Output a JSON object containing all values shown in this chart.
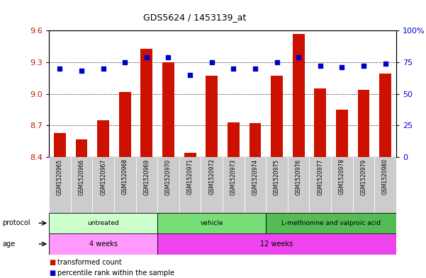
{
  "title": "GDS5624 / 1453139_at",
  "samples": [
    "GSM1520965",
    "GSM1520966",
    "GSM1520967",
    "GSM1520968",
    "GSM1520969",
    "GSM1520970",
    "GSM1520971",
    "GSM1520972",
    "GSM1520973",
    "GSM1520974",
    "GSM1520975",
    "GSM1520976",
    "GSM1520977",
    "GSM1520978",
    "GSM1520979",
    "GSM1520980"
  ],
  "bar_values": [
    8.63,
    8.57,
    8.75,
    9.02,
    9.43,
    9.3,
    8.44,
    9.17,
    8.73,
    8.72,
    9.17,
    9.57,
    9.05,
    8.85,
    9.04,
    9.19
  ],
  "dot_values": [
    70,
    68,
    70,
    75,
    79,
    79,
    65,
    75,
    70,
    70,
    75,
    79,
    72,
    71,
    72,
    74
  ],
  "bar_color": "#cc1100",
  "dot_color": "#0000cc",
  "ylim_left": [
    8.4,
    9.6
  ],
  "ylim_right": [
    0,
    100
  ],
  "yticks_left": [
    8.4,
    8.7,
    9.0,
    9.3,
    9.6
  ],
  "yticks_right": [
    0,
    25,
    50,
    75,
    100
  ],
  "ytick_labels_right": [
    "0",
    "25",
    "50",
    "75",
    "100%"
  ],
  "grid_values": [
    8.7,
    9.0,
    9.3
  ],
  "protocol_colors": [
    "#ccffcc",
    "#77dd77",
    "#55bb55"
  ],
  "protocol_labels": [
    "untreated",
    "vehicle",
    "L-methionine and valproic acid"
  ],
  "protocol_starts": [
    0,
    5,
    10
  ],
  "protocol_ends": [
    5,
    10,
    16
  ],
  "age_colors": [
    "#ff99ff",
    "#ee44ee"
  ],
  "age_labels": [
    "4 weeks",
    "12 weeks"
  ],
  "age_starts": [
    0,
    5
  ],
  "age_ends": [
    5,
    16
  ],
  "protocol_row_label": "protocol",
  "age_row_label": "age",
  "legend_bar_label": "transformed count",
  "legend_dot_label": "percentile rank within the sample",
  "bg_color": "#ffffff",
  "label_bg": "#cccccc"
}
